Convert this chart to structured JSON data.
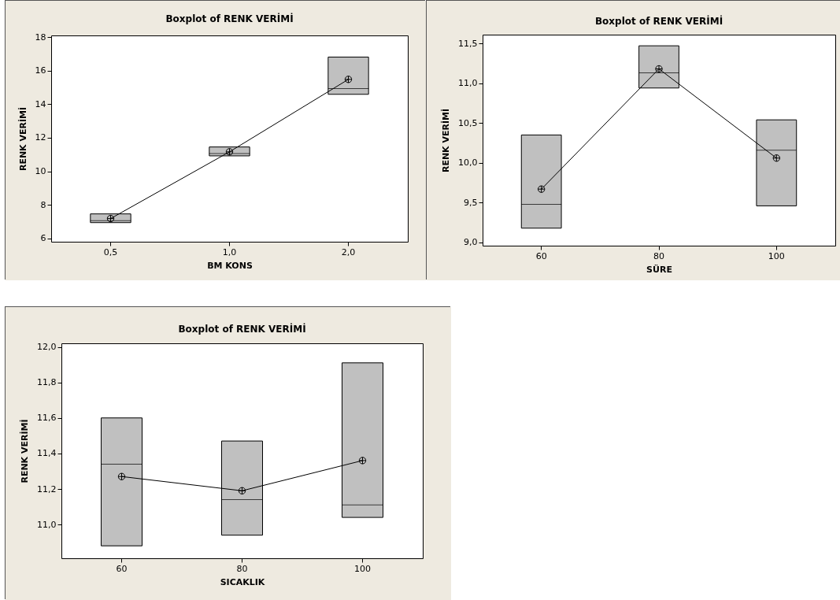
{
  "chart_data": [
    {
      "type": "box",
      "title": "Boxplot of RENK VERİMİ",
      "xlabel": "BM KONS",
      "ylabel": "RENK VERİMİ",
      "categories": [
        "0,5",
        "1,0",
        "2,0"
      ],
      "color": "#c0c0c0",
      "boxes": [
        {
          "low": 6.94,
          "q1": 6.94,
          "median": 7.05,
          "q3": 7.46,
          "high": 7.46,
          "mean": 7.18
        },
        {
          "low": 10.92,
          "q1": 10.92,
          "median": 11.06,
          "q3": 11.45,
          "high": 11.45,
          "mean": 11.16
        },
        {
          "low": 14.59,
          "q1": 14.59,
          "median": 14.93,
          "q3": 16.81,
          "high": 16.81,
          "mean": 15.48
        }
      ],
      "series": [
        {
          "type": "line",
          "color": "#000000",
          "values": [
            7.18,
            11.16,
            15.48
          ]
        }
      ],
      "ylim": [
        5.8,
        18.1
      ],
      "yticks": [
        6,
        8,
        10,
        12,
        14,
        16,
        18
      ]
    },
    {
      "type": "box",
      "title": "Boxplot of RENK VERİMİ",
      "xlabel": "SÜRE",
      "ylabel": "RENK VERİMİ",
      "categories": [
        "60",
        "80",
        "100"
      ],
      "color": "#c0c0c0",
      "boxes": [
        {
          "low": 9.18,
          "q1": 9.18,
          "median": 9.48,
          "q3": 10.35,
          "high": 10.35,
          "mean": 9.67
        },
        {
          "low": 10.94,
          "q1": 10.94,
          "median": 11.13,
          "q3": 11.47,
          "high": 11.47,
          "mean": 11.18
        },
        {
          "low": 9.46,
          "q1": 9.46,
          "median": 10.16,
          "q3": 10.54,
          "high": 10.54,
          "mean": 10.06
        }
      ],
      "series": [
        {
          "type": "line",
          "color": "#000000",
          "values": [
            9.67,
            11.18,
            10.06
          ]
        }
      ],
      "ylim": [
        8.96,
        11.61
      ],
      "yticks": [
        {
          "value": 9,
          "label": "9,0"
        },
        {
          "value": 9.5,
          "label": "9,5"
        },
        {
          "value": 10,
          "label": "10,0"
        },
        {
          "value": 10.5,
          "label": "10,5"
        },
        {
          "value": 11,
          "label": "11,0"
        },
        {
          "value": 11.5,
          "label": "11,5"
        }
      ]
    },
    {
      "type": "box",
      "title": "Boxplot of RENK VERİMİ",
      "xlabel": "SICAKLIK",
      "ylabel": "RENK VERİMİ",
      "categories": [
        "60",
        "80",
        "100"
      ],
      "color": "#c0c0c0",
      "boxes": [
        {
          "low": 10.88,
          "q1": 10.88,
          "median": 11.34,
          "q3": 11.6,
          "high": 11.6,
          "mean": 11.27
        },
        {
          "low": 10.94,
          "q1": 10.94,
          "median": 11.14,
          "q3": 11.47,
          "high": 11.47,
          "mean": 11.19
        },
        {
          "low": 11.04,
          "q1": 11.04,
          "median": 11.11,
          "q3": 11.91,
          "high": 11.91,
          "mean": 11.36
        }
      ],
      "series": [
        {
          "type": "line",
          "color": "#000000",
          "values": [
            11.27,
            11.19,
            11.36
          ]
        }
      ],
      "ylim": [
        10.81,
        12.02
      ],
      "yticks": [
        {
          "value": 11,
          "label": "11,0"
        },
        {
          "value": 11.2,
          "label": "11,2"
        },
        {
          "value": 11.4,
          "label": "11,4"
        },
        {
          "value": 11.6,
          "label": "11,6"
        },
        {
          "value": 11.8,
          "label": "11,8"
        },
        {
          "value": 12,
          "label": "12,0"
        }
      ]
    }
  ]
}
